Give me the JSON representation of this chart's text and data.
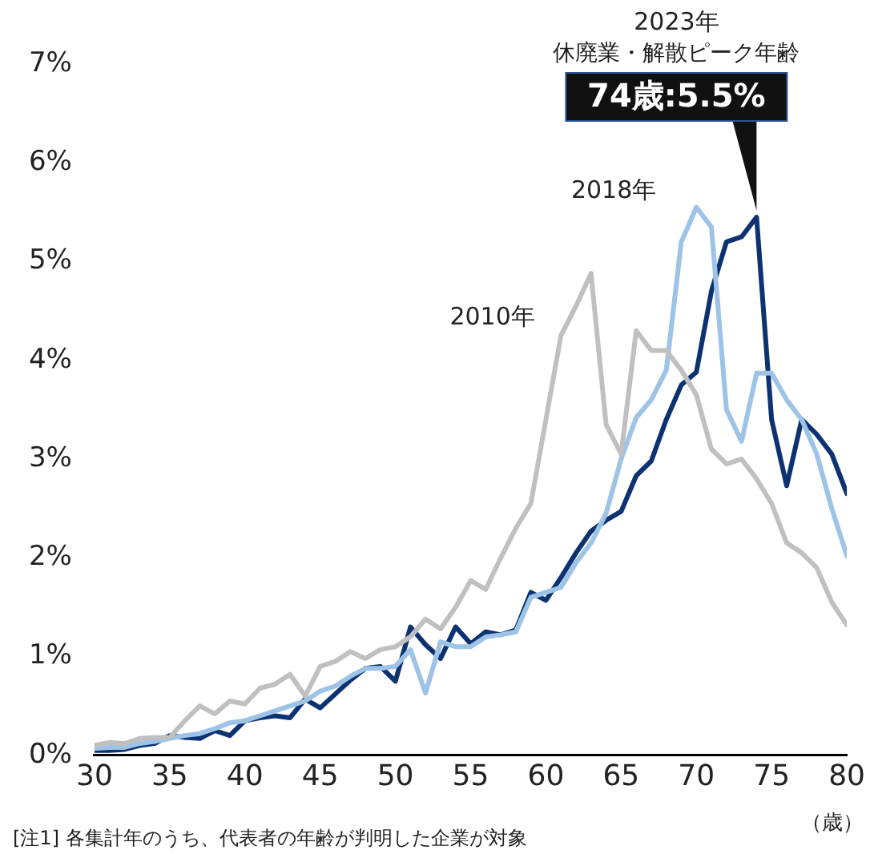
{
  "chart_data": {
    "type": "line",
    "xlabel": "（歳）",
    "x": [
      30,
      31,
      32,
      33,
      34,
      35,
      36,
      37,
      38,
      39,
      40,
      41,
      42,
      43,
      44,
      45,
      46,
      47,
      48,
      49,
      50,
      51,
      52,
      53,
      54,
      55,
      56,
      57,
      58,
      59,
      60,
      61,
      62,
      63,
      64,
      65,
      66,
      67,
      68,
      69,
      70,
      71,
      72,
      73,
      74,
      75,
      76,
      77,
      78,
      79,
      80
    ],
    "series": [
      {
        "name": "2010年",
        "color": "#c0c0c0",
        "values": [
          0.1,
          0.13,
          0.12,
          0.17,
          0.18,
          0.18,
          0.35,
          0.5,
          0.42,
          0.55,
          0.52,
          0.68,
          0.72,
          0.82,
          0.6,
          0.9,
          0.95,
          1.05,
          0.98,
          1.07,
          1.1,
          1.2,
          1.38,
          1.28,
          1.5,
          1.77,
          1.68,
          2.0,
          2.3,
          2.55,
          3.4,
          4.25,
          4.55,
          4.88,
          3.35,
          3.05,
          4.3,
          4.1,
          4.1,
          3.9,
          3.65,
          3.1,
          2.95,
          3.0,
          2.8,
          2.55,
          2.15,
          2.05,
          1.9,
          1.55,
          1.32
        ]
      },
      {
        "name": "2018年",
        "color": "#9dc3e6",
        "values": [
          0.07,
          0.08,
          0.08,
          0.12,
          0.14,
          0.17,
          0.2,
          0.22,
          0.27,
          0.33,
          0.35,
          0.4,
          0.45,
          0.5,
          0.55,
          0.65,
          0.7,
          0.8,
          0.88,
          0.88,
          0.9,
          1.07,
          0.63,
          1.15,
          1.1,
          1.1,
          1.2,
          1.22,
          1.25,
          1.6,
          1.65,
          1.7,
          1.95,
          2.15,
          2.45,
          3.0,
          3.42,
          3.6,
          3.9,
          5.2,
          5.55,
          5.35,
          3.5,
          3.18,
          3.87,
          3.87,
          3.6,
          3.4,
          3.05,
          2.5,
          2.02
        ]
      },
      {
        "color": "#0d3272",
        "values": [
          0.05,
          0.05,
          0.06,
          0.1,
          0.12,
          0.2,
          0.18,
          0.17,
          0.25,
          0.2,
          0.35,
          0.38,
          0.4,
          0.38,
          0.57,
          0.48,
          0.62,
          0.76,
          0.88,
          0.9,
          0.75,
          1.3,
          1.12,
          0.98,
          1.3,
          1.13,
          1.25,
          1.22,
          1.27,
          1.65,
          1.57,
          1.8,
          2.05,
          2.27,
          2.38,
          2.47,
          2.83,
          2.98,
          3.4,
          3.75,
          3.88,
          4.7,
          5.2,
          5.25,
          5.45,
          3.4,
          2.73,
          3.4,
          3.25,
          3.05,
          2.65
        ]
      }
    ],
    "xlim": [
      30,
      80
    ],
    "xticks": [
      30,
      35,
      40,
      45,
      50,
      55,
      60,
      65,
      70,
      75,
      80
    ],
    "ylim": [
      0,
      7
    ],
    "yticks": [
      {
        "value": 0,
        "label": "0%"
      },
      {
        "value": 1,
        "label": "1%"
      },
      {
        "value": 2,
        "label": "2%"
      },
      {
        "value": 3,
        "label": "3%"
      },
      {
        "value": 4,
        "label": "4%"
      },
      {
        "value": 5,
        "label": "5%"
      },
      {
        "value": 6,
        "label": "6%"
      },
      {
        "value": 7,
        "label": "7%"
      }
    ],
    "grid": false,
    "legend": false,
    "marker": "none",
    "line_style": "solid",
    "annotations": [
      "2023年",
      "休廃業・解散ピーク年齢",
      {
        "text": "74歳:5.5%",
        "x": 74,
        "y": 5.45
      },
      "[注1] 各集計年のうち、代表者の年齢が判明した企業が対象"
    ]
  }
}
